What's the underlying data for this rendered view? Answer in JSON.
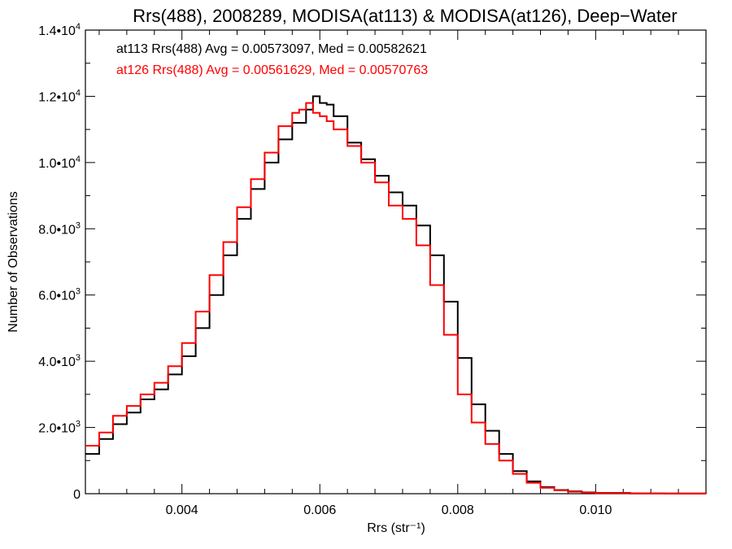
{
  "chart_data": {
    "type": "line",
    "step": true,
    "title": "Rrs(488), 2008289, MODISA(at113) & MODISA(at126), Deep−Water",
    "xlabel": "Rrs (str⁻¹)",
    "ylabel": "Number of Observations",
    "xlim": [
      0.0026,
      0.0116
    ],
    "ylim": [
      0,
      14000
    ],
    "grid": false,
    "x_tick_labels": [
      {
        "value": 0.004,
        "label": "0.004"
      },
      {
        "value": 0.006,
        "label": "0.006"
      },
      {
        "value": 0.008,
        "label": "0.008"
      },
      {
        "value": 0.01,
        "label": "0.010"
      }
    ],
    "y_tick_labels": [
      {
        "value": 0,
        "mantissa": "0",
        "exponent": ""
      },
      {
        "value": 2000,
        "mantissa": "2.0•10",
        "exponent": "3"
      },
      {
        "value": 4000,
        "mantissa": "4.0•10",
        "exponent": "3"
      },
      {
        "value": 6000,
        "mantissa": "6.0•10",
        "exponent": "3"
      },
      {
        "value": 8000,
        "mantissa": "8.0•10",
        "exponent": "3"
      },
      {
        "value": 10000,
        "mantissa": "1.0•10",
        "exponent": "4"
      },
      {
        "value": 12000,
        "mantissa": "1.2•10",
        "exponent": "4"
      },
      {
        "value": 14000,
        "mantissa": "1.4•10",
        "exponent": "4"
      }
    ],
    "annotations": [
      {
        "text": "at113 Rrs(488) Avg = 0.00573097, Med = 0.00582621",
        "color": "#000000"
      },
      {
        "text": "at126 Rrs(488) Avg = 0.00561629, Med = 0.00570763",
        "color": "#ff0000"
      }
    ],
    "series": [
      {
        "color": "#000000",
        "x": [
          0.0026,
          0.0028,
          0.003,
          0.0032,
          0.0034,
          0.0036,
          0.0038,
          0.004,
          0.0042,
          0.0044,
          0.0046,
          0.0048,
          0.005,
          0.0052,
          0.0054,
          0.0056,
          0.0058,
          0.0059,
          0.006,
          0.0061,
          0.0062,
          0.0064,
          0.0066,
          0.0068,
          0.007,
          0.0072,
          0.0074,
          0.0076,
          0.0078,
          0.008,
          0.0082,
          0.0084,
          0.0086,
          0.0088,
          0.009,
          0.0092,
          0.0094,
          0.0096,
          0.0098,
          0.01,
          0.0105,
          0.011,
          0.0116
        ],
        "y": [
          1200,
          1650,
          2100,
          2450,
          2850,
          3150,
          3600,
          4150,
          5000,
          6000,
          7200,
          8300,
          9200,
          10000,
          10700,
          11200,
          11600,
          12000,
          11800,
          11750,
          11400,
          10600,
          10100,
          9600,
          9100,
          8700,
          8100,
          7200,
          5800,
          4100,
          2700,
          1900,
          1200,
          680,
          370,
          200,
          110,
          70,
          40,
          25,
          10,
          5,
          3
        ]
      },
      {
        "color": "#ff0000",
        "x": [
          0.0026,
          0.0028,
          0.003,
          0.0032,
          0.0034,
          0.0036,
          0.0038,
          0.004,
          0.0042,
          0.0044,
          0.0046,
          0.0048,
          0.005,
          0.0052,
          0.0054,
          0.0056,
          0.0057,
          0.0058,
          0.0059,
          0.006,
          0.0061,
          0.0062,
          0.0064,
          0.0066,
          0.0068,
          0.007,
          0.0072,
          0.0074,
          0.0076,
          0.0078,
          0.008,
          0.0082,
          0.0084,
          0.0086,
          0.0088,
          0.009,
          0.0092,
          0.0094,
          0.0096,
          0.0098,
          0.01,
          0.0105,
          0.011,
          0.0116
        ],
        "y": [
          1450,
          1850,
          2350,
          2650,
          3000,
          3350,
          3850,
          4550,
          5500,
          6600,
          7600,
          8650,
          9500,
          10300,
          11100,
          11500,
          11600,
          11800,
          11500,
          11400,
          11250,
          11000,
          10500,
          10000,
          9400,
          8700,
          8300,
          7500,
          6300,
          4800,
          3000,
          2150,
          1500,
          1000,
          600,
          330,
          180,
          100,
          60,
          35,
          20,
          10,
          5,
          3
        ]
      }
    ]
  }
}
